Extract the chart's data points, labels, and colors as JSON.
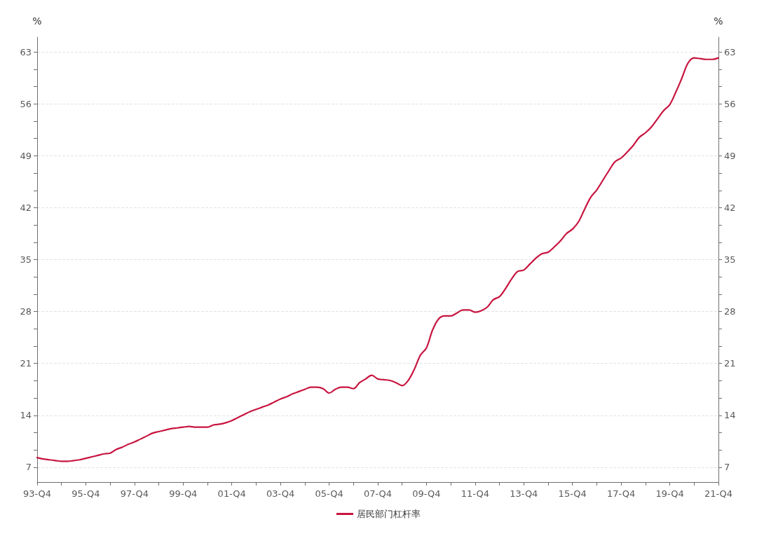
{
  "chart_data": {
    "type": "line",
    "categories": [
      "93-Q4",
      null,
      null,
      null,
      null,
      null,
      null,
      null,
      "95-Q4",
      null,
      null,
      null,
      null,
      null,
      null,
      null,
      "97-Q4",
      null,
      null,
      null,
      null,
      null,
      null,
      null,
      "99-Q4",
      null,
      null,
      null,
      null,
      null,
      null,
      null,
      "01-Q4",
      null,
      null,
      null,
      null,
      null,
      null,
      null,
      "03-Q4",
      null,
      null,
      null,
      null,
      null,
      null,
      null,
      "05-Q4",
      null,
      null,
      null,
      null,
      null,
      null,
      null,
      "07-Q4",
      null,
      null,
      null,
      null,
      null,
      null,
      null,
      "09-Q4",
      null,
      null,
      null,
      null,
      null,
      null,
      null,
      "11-Q4",
      null,
      null,
      null,
      null,
      null,
      null,
      null,
      "13-Q4",
      null,
      null,
      null,
      null,
      null,
      null,
      null,
      "15-Q4",
      null,
      null,
      null,
      null,
      null,
      null,
      null,
      "17-Q4",
      null,
      null,
      null,
      null,
      null,
      null,
      null,
      "19-Q4",
      null,
      null,
      null,
      null,
      null,
      null,
      null,
      "21-Q4"
    ],
    "series": [
      {
        "name": "居民部门杠杆率",
        "color": "#c8153f",
        "values": [
          8.3,
          8.1,
          8.0,
          7.9,
          7.8,
          7.8,
          7.9,
          8.0,
          8.2,
          8.4,
          8.6,
          8.8,
          8.9,
          9.4,
          9.7,
          10.1,
          10.4,
          10.8,
          11.2,
          11.6,
          11.8,
          12.0,
          12.2,
          12.3,
          12.4,
          12.5,
          12.4,
          12.4,
          12.4,
          12.7,
          12.8,
          13.0,
          13.3,
          13.7,
          14.1,
          14.5,
          14.8,
          15.1,
          15.4,
          15.8,
          16.2,
          16.5,
          16.9,
          17.2,
          17.5,
          17.8,
          17.8,
          17.6,
          17.0,
          17.5,
          17.8,
          17.8,
          17.6,
          18.4,
          18.9,
          19.4,
          18.9,
          18.8,
          18.7,
          18.4,
          18.0,
          18.7,
          20.2,
          22.1,
          23.1,
          25.5,
          27.0,
          27.4,
          27.4,
          27.8,
          28.2,
          28.2,
          27.9,
          28.1,
          28.6,
          29.6,
          30.0,
          31.1,
          32.4,
          33.4,
          33.6,
          34.4,
          35.2,
          35.8,
          36.0,
          36.7,
          37.5,
          38.5,
          39.1,
          40.1,
          41.8,
          43.4,
          44.4,
          45.7,
          47.0,
          48.2,
          48.7,
          49.5,
          50.4,
          51.5,
          52.1,
          52.9,
          54.0,
          55.1,
          55.9,
          57.6,
          59.5,
          61.5,
          62.2,
          62.1,
          62.0,
          62.0,
          62.2
        ]
      }
    ],
    "ylabel": "%",
    "y2label": "%",
    "ylim": [
      5,
      65
    ],
    "yticks": [
      7,
      {
        "value": 9.33,
        "label": null
      },
      {
        "value": 11.67,
        "label": null
      },
      14,
      {
        "value": 16.33,
        "label": null
      },
      {
        "value": 18.67,
        "label": null
      },
      21,
      {
        "value": 23.33,
        "label": null
      },
      {
        "value": 25.67,
        "label": null
      },
      28,
      {
        "value": 30.33,
        "label": null
      },
      {
        "value": 32.67,
        "label": null
      },
      35,
      {
        "value": 37.33,
        "label": null
      },
      {
        "value": 39.67,
        "label": null
      },
      42,
      {
        "value": 44.33,
        "label": null
      },
      {
        "value": 46.67,
        "label": null
      },
      49,
      {
        "value": 51.33,
        "label": null
      },
      {
        "value": 53.67,
        "label": null
      },
      56,
      {
        "value": 58.33,
        "label": null
      },
      {
        "value": 60.67,
        "label": null
      },
      63
    ],
    "y2lim": [
      5,
      65
    ],
    "y2ticks": [
      7,
      {
        "value": 9.33,
        "label": null
      },
      {
        "value": 11.67,
        "label": null
      },
      14,
      {
        "value": 16.33,
        "label": null
      },
      {
        "value": 18.67,
        "label": null
      },
      21,
      {
        "value": 23.33,
        "label": null
      },
      {
        "value": 25.67,
        "label": null
      },
      28,
      {
        "value": 30.33,
        "label": null
      },
      {
        "value": 32.67,
        "label": null
      },
      35,
      {
        "value": 37.33,
        "label": null
      },
      {
        "value": 39.67,
        "label": null
      },
      42,
      {
        "value": 44.33,
        "label": null
      },
      {
        "value": 46.67,
        "label": null
      },
      49,
      {
        "value": 51.33,
        "label": null
      },
      {
        "value": 53.67,
        "label": null
      },
      56,
      {
        "value": 58.33,
        "label": null
      },
      {
        "value": 60.67,
        "label": null
      },
      63
    ],
    "grid": "y",
    "legend": "bottom"
  }
}
